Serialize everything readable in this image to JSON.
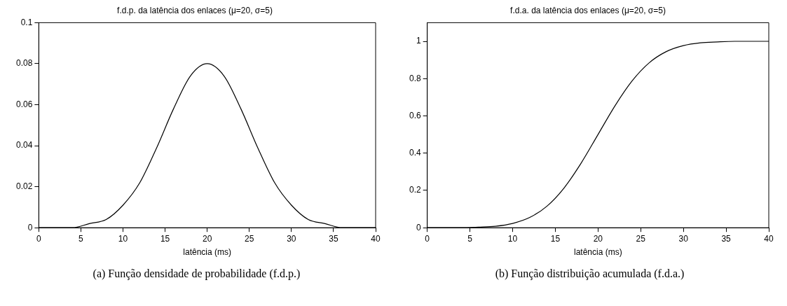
{
  "chart_data": [
    {
      "type": "line",
      "title": "f.d.p. da latência dos enlaces (μ=20, σ=5)",
      "xlabel": "latência (ms)",
      "x": [
        0,
        2,
        4,
        6,
        8,
        10,
        12,
        14,
        16,
        18,
        20,
        22,
        24,
        26,
        28,
        30,
        32,
        34,
        36,
        38,
        40
      ],
      "series": [
        {
          "color": "#000000",
          "values": [
            0,
            0,
            0,
            0.002,
            0.004,
            0.011,
            0.022,
            0.039,
            0.058,
            0.074,
            0.08,
            0.074,
            0.058,
            0.039,
            0.022,
            0.011,
            0.004,
            0.002,
            0,
            0,
            0
          ]
        }
      ],
      "xlim": [
        0,
        40
      ],
      "xticks": [
        0,
        5,
        10,
        15,
        20,
        25,
        30,
        35,
        40
      ],
      "ylim": [
        0,
        0.1
      ],
      "yticks": [
        0,
        0.02,
        0.04,
        0.06,
        0.08,
        0.1
      ],
      "grid": false,
      "legend": false,
      "marker": "none",
      "line_style": "solid",
      "annotations": [
        "(a) Função densidade de probabilidade (f.d.p.)"
      ]
    },
    {
      "type": "line",
      "title": "f.d.a. da latência dos enlaces (μ=20, σ=5)",
      "xlabel": "latência (ms)",
      "x": [
        0,
        2,
        4,
        6,
        8,
        10,
        12,
        14,
        16,
        18,
        20,
        22,
        24,
        26,
        28,
        30,
        32,
        34,
        36,
        38,
        40
      ],
      "series": [
        {
          "color": "#000000",
          "values": [
            0,
            0,
            0,
            0.003,
            0.008,
            0.023,
            0.055,
            0.115,
            0.212,
            0.345,
            0.5,
            0.655,
            0.788,
            0.885,
            0.945,
            0.977,
            0.992,
            0.997,
            1,
            1,
            1
          ]
        }
      ],
      "xlim": [
        0,
        40
      ],
      "xticks": [
        0,
        5,
        10,
        15,
        20,
        25,
        30,
        35,
        40
      ],
      "ylim": [
        0,
        1.1
      ],
      "yticks": [
        0,
        0.2,
        0.4,
        0.6,
        0.8,
        1
      ],
      "grid": false,
      "legend": false,
      "marker": "none",
      "line_style": "solid",
      "annotations": [
        "(b) Função distribuição acumulada (f.d.a.)"
      ]
    }
  ]
}
